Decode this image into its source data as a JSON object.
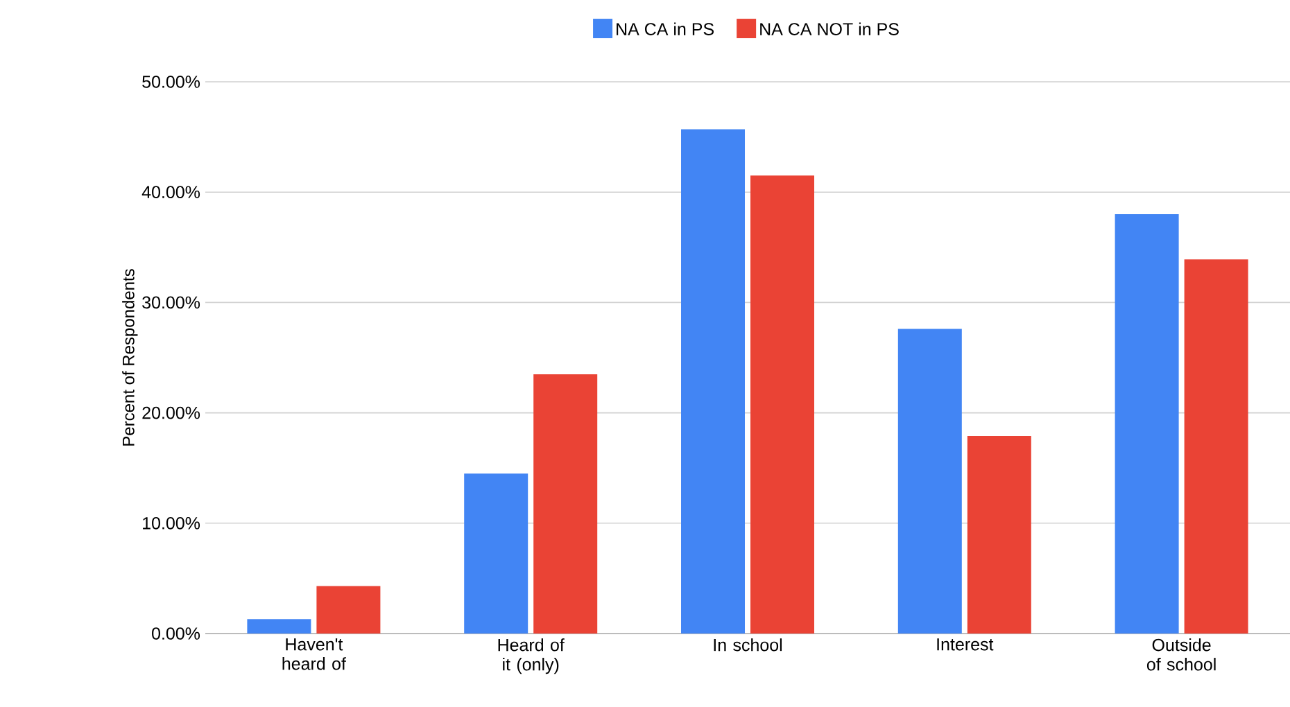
{
  "chart_data": {
    "type": "bar",
    "ylabel": "Percent of Respondents",
    "categories": [
      "Haven't heard of",
      "Heard of it (only)",
      "In school",
      "Interest",
      "Outside of school"
    ],
    "series": [
      {
        "name": "NA CA in PS",
        "color": "#4285f4",
        "values": [
          1.3,
          14.5,
          45.7,
          27.6,
          38.0
        ]
      },
      {
        "name": "NA CA NOT in PS",
        "color": "#ea4335",
        "values": [
          4.3,
          23.5,
          41.5,
          17.9,
          33.9
        ]
      }
    ],
    "ylim": [
      0,
      50
    ],
    "yticks": [
      {
        "value": 0,
        "label": "0.00%"
      },
      {
        "value": 10,
        "label": "10.00%"
      },
      {
        "value": 20,
        "label": "20.00%"
      },
      {
        "value": 30,
        "label": "30.00%"
      },
      {
        "value": 40,
        "label": "40.00%"
      },
      {
        "value": 50,
        "label": "50.00%"
      }
    ],
    "grid": "y",
    "legend": "top"
  }
}
